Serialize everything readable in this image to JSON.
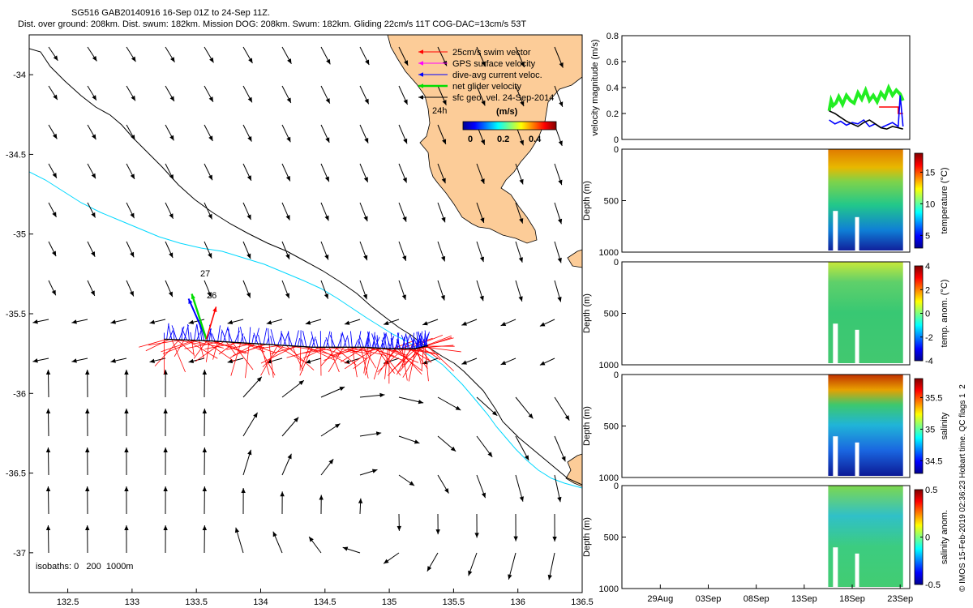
{
  "header": {
    "title": "SG516 GAB20140916 16-Sep 01Z to 24-Sep 11Z.",
    "subtitle": "Dist. over ground: 208km. Dist. swum: 182km. Mission DOG: 208km. Swum: 182km. Gliding 22cm/s 11T COG-DAC=13cm/s 53T"
  },
  "side_note": "© IMOS 15-Feb-2019 02:36:23 Hobart time. QC flags 1  2",
  "colors": {
    "land": "#fccc98",
    "swim": "#ff0000",
    "gps": "#ff00ff",
    "dac": "#0000ff",
    "net": "#00dd00",
    "isobath_200": "#000000",
    "isobath_1000": "#00d8ff",
    "geo_vector": "#000000"
  },
  "chart_data": [
    {
      "type": "quiver-map",
      "xlim": [
        132.2,
        136.5
      ],
      "ylim": [
        -37.25,
        -33.75
      ],
      "xticks": [
        "132.5",
        "133",
        "133.5",
        "134",
        "134.5",
        "135",
        "135.5",
        "136",
        "136.5"
      ],
      "yticks": [
        "-34",
        "-34.5",
        "-35",
        "-35.5",
        "-36",
        "-36.5",
        "-37"
      ],
      "legend": {
        "position": "top-right",
        "entries": [
          {
            "label": "25cm/s swim vector",
            "color": "#ff0000"
          },
          {
            "label": "GPS surface velocity",
            "color": "#ff00ff"
          },
          {
            "label": "dive-avg current veloc.",
            "color": "#0000ff"
          },
          {
            "label": "net glider velocity",
            "color": "#00dd00"
          },
          {
            "label": "sfc geo. vel. 24-Sep-2014",
            "color": "#000000"
          }
        ],
        "time_label": "24h"
      },
      "colorbar": {
        "label": "(m/s)",
        "ticks": [
          "0",
          "0.2",
          "0.4"
        ],
        "range": [
          0,
          0.45
        ]
      },
      "annotations": [
        "27",
        "26"
      ],
      "isobath_note": "isobaths: 0   200  1000m",
      "glider_track": [
        [
          133.25,
          -35.66
        ],
        [
          133.6,
          -35.67
        ],
        [
          134.0,
          -35.69
        ],
        [
          134.4,
          -35.71
        ],
        [
          134.8,
          -35.71
        ],
        [
          135.0,
          -35.72
        ],
        [
          135.2,
          -35.72
        ],
        [
          135.3,
          -35.7
        ]
      ]
    },
    {
      "type": "line",
      "ylabel": "velocity magnitude (m/s)",
      "ylim": [
        0,
        0.8
      ],
      "yticks": [
        "0",
        "0.2",
        "0.4",
        "0.6",
        "0.8"
      ],
      "xlim": [
        25,
        55
      ],
      "series": [
        {
          "color": "#22ee22",
          "x": [
            46.6,
            46.8,
            47.0,
            47.3,
            47.6,
            48.0,
            48.4,
            48.8,
            49.2,
            49.6,
            50.0,
            50.4,
            50.8,
            51.2,
            51.6,
            52.0,
            52.4,
            52.8,
            53.2,
            53.6,
            54.0,
            54.3
          ],
          "values": [
            0.22,
            0.3,
            0.26,
            0.28,
            0.33,
            0.27,
            0.34,
            0.3,
            0.28,
            0.36,
            0.31,
            0.38,
            0.3,
            0.34,
            0.29,
            0.36,
            0.32,
            0.4,
            0.34,
            0.38,
            0.35,
            0.3
          ]
        },
        {
          "color": "#ff0000",
          "x": [
            51.8,
            53.8,
            53.8,
            54.3
          ],
          "values": [
            0.25,
            0.25,
            0.2,
            0.2
          ]
        },
        {
          "color": "#0000ff",
          "x": [
            46.6,
            47.2,
            47.8,
            48.4,
            49.0,
            49.6,
            50.2,
            50.8,
            51.4,
            52.0,
            52.6,
            53.2,
            53.8,
            54.0,
            54.3
          ],
          "values": [
            0.15,
            0.12,
            0.14,
            0.11,
            0.13,
            0.12,
            0.15,
            0.1,
            0.12,
            0.09,
            0.11,
            0.13,
            0.1,
            0.34,
            0.1
          ]
        },
        {
          "color": "#000000",
          "x": [
            46.6,
            47.2,
            47.8,
            48.4,
            49.0,
            49.6,
            50.2,
            50.8,
            51.4,
            52.0,
            52.6,
            53.2,
            53.8,
            54.3
          ],
          "values": [
            0.22,
            0.2,
            0.17,
            0.14,
            0.12,
            0.1,
            0.13,
            0.15,
            0.12,
            0.09,
            0.08,
            0.1,
            0.09,
            0.08
          ]
        }
      ]
    },
    {
      "type": "heatmap",
      "ylabel": "Depth (m)",
      "clabel": "temperature (°C)",
      "ylim": [
        1000,
        0
      ],
      "yticks": [
        "0",
        "500",
        "1000"
      ],
      "cticks": [
        "5",
        "10",
        "15"
      ],
      "crange": [
        3,
        18
      ]
    },
    {
      "type": "heatmap",
      "ylabel": "Depth (m)",
      "clabel": "temp. anom. (°C)",
      "ylim": [
        1000,
        0
      ],
      "yticks": [
        "0",
        "500",
        "1000"
      ],
      "cticks": [
        "-4",
        "-2",
        "0",
        "2",
        "4"
      ],
      "crange": [
        -4,
        4
      ]
    },
    {
      "type": "heatmap",
      "ylabel": "Depth (m)",
      "clabel": "salinity",
      "ylim": [
        1000,
        0
      ],
      "yticks": [
        "0",
        "500",
        "1000"
      ],
      "cticks": [
        "34.5",
        "35",
        "35.5"
      ],
      "crange": [
        34.3,
        35.8
      ]
    },
    {
      "type": "heatmap",
      "ylabel": "Depth (m)",
      "clabel": "salinity anom.",
      "ylim": [
        1000,
        0
      ],
      "yticks": [
        "0",
        "500",
        "1000"
      ],
      "cticks": [
        "-0.5",
        "0",
        "0.5"
      ],
      "crange": [
        -0.5,
        0.5
      ],
      "xticks": [
        "29Aug",
        "03Sep",
        "08Sep",
        "13Sep",
        "18Sep",
        "23Sep"
      ]
    }
  ]
}
